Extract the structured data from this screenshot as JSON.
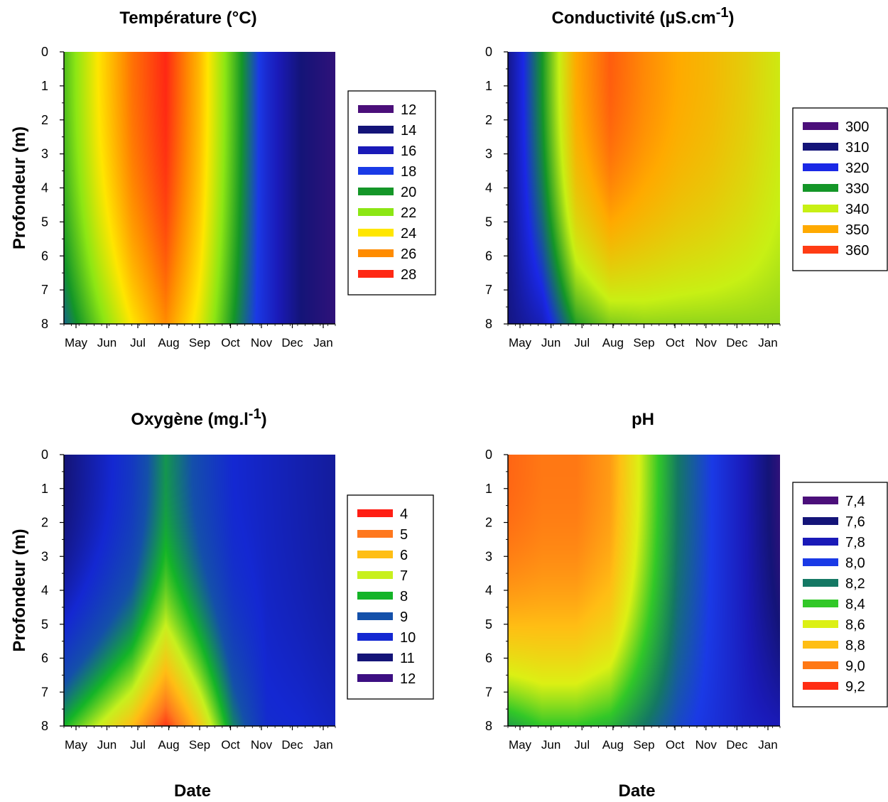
{
  "chart_data": [
    {
      "type": "heatmap",
      "title": "Température (°C)",
      "title_sup": "",
      "title_tail": "",
      "xlabel": "",
      "ylabel": "Profondeur (m)",
      "x_ticks": [
        "May",
        "Jun",
        "Jul",
        "Aug",
        "Sep",
        "Oct",
        "Nov",
        "Dec",
        "Jan"
      ],
      "y_ticks": [
        "0",
        "1",
        "2",
        "3",
        "4",
        "5",
        "6",
        "7",
        "8"
      ],
      "ylim": [
        0,
        8
      ],
      "legend_position": "right",
      "legend": [
        {
          "label": "12",
          "color": "#4b0f7a"
        },
        {
          "label": "14",
          "color": "#141478"
        },
        {
          "label": "16",
          "color": "#1a1ab8"
        },
        {
          "label": "18",
          "color": "#1a3ae6"
        },
        {
          "label": "20",
          "color": "#149628"
        },
        {
          "label": "22",
          "color": "#8ce614"
        },
        {
          "label": "24",
          "color": "#ffe600"
        },
        {
          "label": "26",
          "color": "#ff8c00"
        },
        {
          "label": "28",
          "color": "#ff2814"
        }
      ],
      "profile": {
        "months": [
          0,
          1,
          2,
          3,
          4,
          5,
          6,
          7,
          8
        ],
        "surface": [
          21,
          24,
          26.5,
          28,
          25,
          21,
          17,
          14,
          13
        ],
        "bottom": [
          19,
          21.5,
          24,
          26,
          23.5,
          20,
          17,
          14,
          13
        ]
      }
    },
    {
      "type": "heatmap",
      "title": "Conductivité (µS.cm",
      "title_sup": "-1",
      "title_tail": ")",
      "xlabel": "",
      "ylabel": "",
      "x_ticks": [
        "May",
        "Jun",
        "Jul",
        "Aug",
        "Sep",
        "Oct",
        "Nov",
        "Dec",
        "Jan"
      ],
      "y_ticks": [
        "0",
        "1",
        "2",
        "3",
        "4",
        "5",
        "6",
        "7",
        "8"
      ],
      "ylim": [
        0,
        8
      ],
      "legend_position": "right",
      "legend": [
        {
          "label": "300",
          "color": "#4b0f7a"
        },
        {
          "label": "310",
          "color": "#141478"
        },
        {
          "label": "320",
          "color": "#1a28e6"
        },
        {
          "label": "330",
          "color": "#149628"
        },
        {
          "label": "340",
          "color": "#c8f014"
        },
        {
          "label": "350",
          "color": "#ffaa00"
        },
        {
          "label": "360",
          "color": "#ff3c14"
        }
      ],
      "profile": {
        "months": [
          0,
          1,
          2,
          3,
          4,
          5,
          6,
          7,
          8
        ],
        "surface": [
          312,
          330,
          350,
          357,
          353,
          350,
          348,
          345,
          341
        ],
        "bottom": [
          311,
          316,
          331,
          336,
          337,
          337,
          337,
          337,
          337
        ]
      }
    },
    {
      "type": "heatmap",
      "title": "Oxygène (mg.l",
      "title_sup": "-1",
      "title_tail": ")",
      "xlabel": "Date",
      "ylabel": "Profondeur (m)",
      "x_ticks": [
        "May",
        "Jun",
        "Jul",
        "Aug",
        "Sep",
        "Oct",
        "Nov",
        "Dec",
        "Jan"
      ],
      "y_ticks": [
        "0",
        "1",
        "2",
        "3",
        "4",
        "5",
        "6",
        "7",
        "8"
      ],
      "ylim": [
        0,
        8
      ],
      "legend_position": "right",
      "legend": [
        {
          "label": "4",
          "color": "#ff1e14"
        },
        {
          "label": "5",
          "color": "#ff781e"
        },
        {
          "label": "6",
          "color": "#ffbe14"
        },
        {
          "label": "7",
          "color": "#c8f01e"
        },
        {
          "label": "8",
          "color": "#14b428"
        },
        {
          "label": "9",
          "color": "#1450aa"
        },
        {
          "label": "10",
          "color": "#1428d2"
        },
        {
          "label": "11",
          "color": "#141478"
        },
        {
          "label": "12",
          "color": "#3c0f82"
        }
      ],
      "profile": {
        "months": [
          0,
          1,
          2,
          3,
          4,
          5,
          6,
          7,
          8
        ],
        "surface": [
          11,
          10.3,
          9.6,
          8.3,
          9.2,
          10,
          10.2,
          10.4,
          10.6
        ],
        "bottom": [
          8,
          7,
          6,
          4.3,
          6.2,
          8.5,
          9.9,
          10,
          10.2
        ]
      }
    },
    {
      "type": "heatmap",
      "title": "pH",
      "title_sup": "",
      "title_tail": "",
      "xlabel": "Date",
      "ylabel": "",
      "x_ticks": [
        "May",
        "Jun",
        "Jul",
        "Aug",
        "Sep",
        "Oct",
        "Nov",
        "Dec",
        "Jan"
      ],
      "y_ticks": [
        "0",
        "1",
        "2",
        "3",
        "4",
        "5",
        "6",
        "7",
        "8"
      ],
      "ylim": [
        0,
        8
      ],
      "legend_position": "right",
      "legend": [
        {
          "label": "7,4",
          "color": "#4b0f7a"
        },
        {
          "label": "7,6",
          "color": "#141478"
        },
        {
          "label": "7,8",
          "color": "#1a1ab8"
        },
        {
          "label": "8,0",
          "color": "#1a3ae6"
        },
        {
          "label": "8,2",
          "color": "#147864"
        },
        {
          "label": "8,4",
          "color": "#32c828"
        },
        {
          "label": "8,6",
          "color": "#dcf014"
        },
        {
          "label": "8,8",
          "color": "#ffbe14"
        },
        {
          "label": "9,0",
          "color": "#ff7814"
        },
        {
          "label": "9,2",
          "color": "#ff2d14"
        }
      ],
      "profile": {
        "months": [
          0,
          1,
          2,
          3,
          4,
          5,
          6,
          7,
          8
        ],
        "surface": [
          9.05,
          9.0,
          9.0,
          8.9,
          8.55,
          8.2,
          8.0,
          7.8,
          7.5
        ],
        "bottom": [
          8.3,
          8.4,
          8.4,
          8.35,
          8.2,
          8.05,
          7.95,
          7.85,
          7.8
        ]
      }
    }
  ]
}
